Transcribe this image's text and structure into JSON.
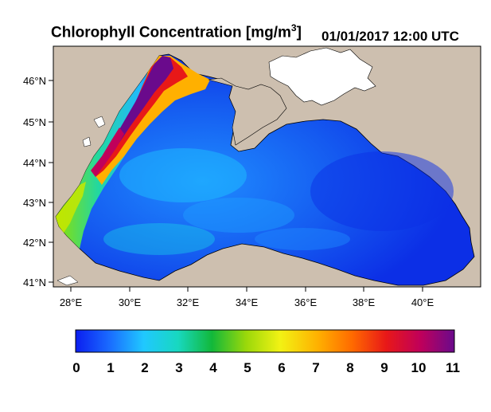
{
  "title": {
    "main": "Chlorophyll Concentration [mg/m",
    "sup": "3",
    "close": "]"
  },
  "timestamp": "01/01/2017 12:00 UTC",
  "map": {
    "region": "Black Sea",
    "lon_range": [
      27.5,
      41.8
    ],
    "lat_range": [
      40.9,
      46.8
    ],
    "lon_ticks": [
      "28°E",
      "30°E",
      "32°E",
      "34°E",
      "36°E",
      "38°E",
      "40°E"
    ],
    "lat_ticks": [
      "41°N",
      "42°N",
      "43°N",
      "44°N",
      "45°N",
      "46°N"
    ],
    "land_color": "#cdbfaf",
    "water_inland_color": "#ffffff",
    "sea_base_color": "#1a4fe8"
  },
  "colorbar": {
    "labels": [
      "0",
      "1",
      "2",
      "3",
      "4",
      "5",
      "6",
      "7",
      "8",
      "9",
      "10",
      "11"
    ],
    "min": 0,
    "max": 11,
    "colors": [
      "#0b1ef0",
      "#1a6cff",
      "#20c8ff",
      "#18d8c0",
      "#12b83a",
      "#9ad80a",
      "#f2f214",
      "#ffb000",
      "#ff6a00",
      "#e81818",
      "#c0005a",
      "#6a0a8c"
    ]
  }
}
